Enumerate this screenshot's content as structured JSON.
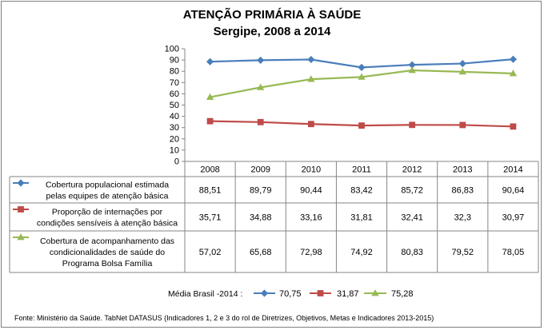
{
  "chart_data": {
    "type": "line",
    "title": "ATENÇÃO PRIMÁRIA À SAÚDE",
    "subtitle": "Sergipe, 2008 a 2014",
    "categories": [
      "2008",
      "2009",
      "2010",
      "2011",
      "2012",
      "2013",
      "2014"
    ],
    "ylim": [
      0,
      100
    ],
    "yticks": [
      0,
      10,
      20,
      30,
      40,
      50,
      60,
      70,
      80,
      90,
      100
    ],
    "grid": false,
    "series": [
      {
        "name_lines": [
          "Cobertura  populacional estimada",
          "pelas equipes de atenção básica"
        ],
        "marker": "diamond",
        "color": "#4a7ebb",
        "values": [
          88.51,
          89.79,
          90.44,
          83.42,
          85.72,
          86.83,
          90.64
        ],
        "labels": [
          "88,51",
          "89,79",
          "90,44",
          "83,42",
          "85,72",
          "86,83",
          "90,64"
        ]
      },
      {
        "name_lines": [
          "Proporção de internações por",
          "condições sensíveis  à atenção básica"
        ],
        "marker": "square",
        "color": "#be4b48",
        "values": [
          35.71,
          34.88,
          33.16,
          31.81,
          32.41,
          32.3,
          30.97
        ],
        "labels": [
          "35,71",
          "34,88",
          "33,16",
          "31,81",
          "32,41",
          "32,3",
          "30,97"
        ]
      },
      {
        "name_lines": [
          "Cobertura de acompanhamento das",
          "condicionalidades de saúde do",
          "Programa Bolsa Família"
        ],
        "marker": "triangle",
        "color": "#98b954",
        "values": [
          57.02,
          65.68,
          72.98,
          74.92,
          80.83,
          79.52,
          78.05
        ],
        "labels": [
          "57,02",
          "65,68",
          "72,98",
          "74,92",
          "80,83",
          "79,52",
          "78,05"
        ]
      }
    ],
    "brazil_average": {
      "label": "Média Brasil -2014 :",
      "values": [
        "70,75",
        "31,87",
        "75,28"
      ]
    }
  },
  "footer": "Fonte: Ministério da Saúde. TabNet DATASUS (Indicadores 1, 2 e 3 do rol de Diretrizes, Objetivos, Metas e Indicadores 2013-2015)"
}
